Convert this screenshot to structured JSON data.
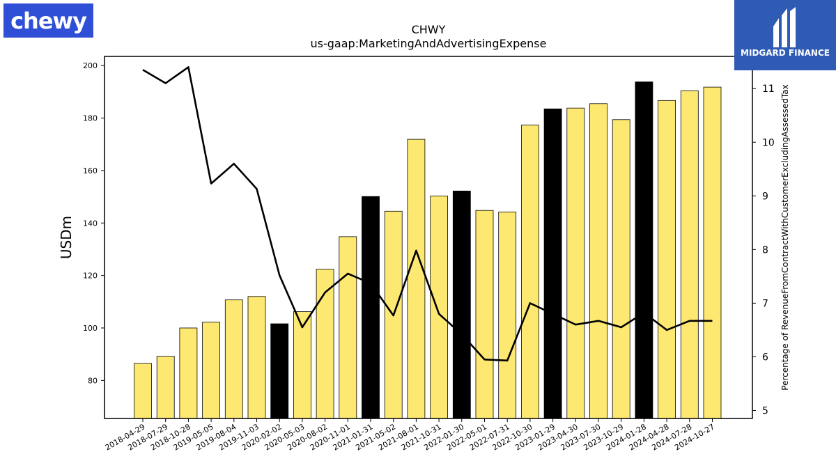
{
  "logos": {
    "left_text": "chewy",
    "left_color": "#2f4fd6",
    "right_text": "MIDGARD FINANCE",
    "right_color": "#2f5bb5"
  },
  "chart_data": {
    "type": "bar",
    "title": "CHWY",
    "subtitle": "us-gaap:MarketingAndAdvertisingExpense",
    "ylabel": "USDm",
    "y2label": "Percentage of RevenueFromContractWithCustomerExcludingAssessedTax",
    "ylim": [
      65.5,
      203.5
    ],
    "y2lim": [
      4.85,
      11.6
    ],
    "yticks": [
      80,
      100,
      120,
      140,
      160,
      180,
      200
    ],
    "y2ticks": [
      5,
      6,
      7,
      8,
      9,
      10,
      11
    ],
    "grid": false,
    "bar_color": "#fde972",
    "highlight_color": "#000000",
    "line_color": "#000000",
    "categories": [
      "2018-04-29",
      "2018-07-29",
      "2018-10-28",
      "2019-05-05",
      "2019-08-04",
      "2019-11-03",
      "2020-02-02",
      "2020-05-03",
      "2020-08-02",
      "2020-11-01",
      "2021-01-31",
      "2021-05-02",
      "2021-08-01",
      "2021-10-31",
      "2022-01-30",
      "2022-05-01",
      "2022-07-31",
      "2022-10-30",
      "2023-01-29",
      "2023-04-30",
      "2023-07-30",
      "2023-10-29",
      "2024-01-28",
      "2024-04-28",
      "2024-07-28",
      "2024-10-27"
    ],
    "series": [
      {
        "values": [
          86.5,
          89.2,
          100.0,
          102.2,
          110.7,
          112.0,
          101.6,
          106.2,
          122.4,
          134.8,
          150.1,
          144.5,
          171.9,
          150.3,
          152.2,
          144.8,
          144.2,
          177.3,
          183.5,
          183.8,
          185.5,
          179.4,
          193.8,
          186.7,
          190.4,
          191.8
        ],
        "highlighted": [
          false,
          false,
          false,
          false,
          false,
          false,
          true,
          false,
          false,
          false,
          true,
          false,
          false,
          false,
          true,
          false,
          false,
          false,
          true,
          false,
          false,
          false,
          true,
          false,
          false,
          false
        ]
      },
      {
        "axis": "right",
        "values": [
          11.35,
          11.1,
          11.4,
          9.23,
          9.6,
          9.13,
          7.52,
          6.55,
          7.2,
          7.55,
          7.37,
          6.77,
          7.98,
          6.8,
          6.42,
          5.95,
          5.93,
          7.0,
          6.8,
          6.6,
          6.67,
          6.55,
          6.82,
          6.5,
          6.67,
          6.67
        ]
      }
    ]
  }
}
